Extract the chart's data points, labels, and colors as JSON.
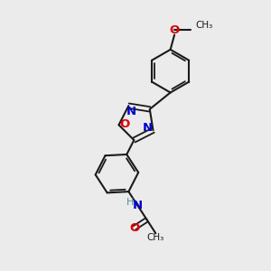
{
  "background_color": "#ebebeb",
  "bond_color": "#1a1a1a",
  "atom_colors": {
    "N": "#0000cc",
    "O": "#dd0000",
    "H": "#4a9090",
    "C": "#1a1a1a"
  },
  "figsize": [
    3.0,
    3.0
  ],
  "dpi": 100
}
